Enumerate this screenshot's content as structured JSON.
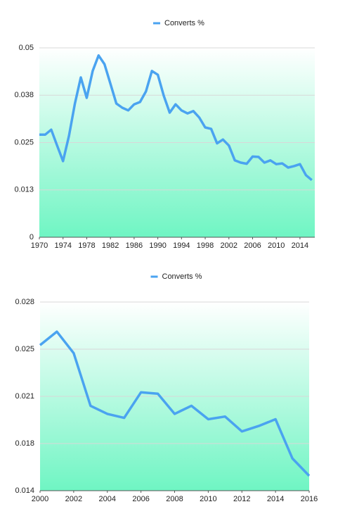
{
  "chart_data": [
    {
      "type": "line",
      "x": [
        1970,
        1971,
        1972,
        1973,
        1974,
        1975,
        1976,
        1977,
        1978,
        1979,
        1980,
        1981,
        1982,
        1983,
        1984,
        1985,
        1986,
        1987,
        1988,
        1989,
        1990,
        1991,
        1992,
        1993,
        1994,
        1995,
        1996,
        1997,
        1998,
        1999,
        2000,
        2001,
        2002,
        2003,
        2004,
        2005,
        2006,
        2007,
        2008,
        2009,
        2010,
        2011,
        2012,
        2013,
        2014,
        2015,
        2016
      ],
      "series": [
        {
          "name": "Converts %",
          "color": "#4aa3f0",
          "values": [
            0.0271,
            0.0271,
            0.0284,
            0.0242,
            0.0201,
            0.0268,
            0.0353,
            0.0422,
            0.0368,
            0.0439,
            0.048,
            0.0457,
            0.0405,
            0.0353,
            0.0342,
            0.0335,
            0.0351,
            0.0357,
            0.0385,
            0.0439,
            0.0429,
            0.0374,
            0.0329,
            0.0351,
            0.0335,
            0.0327,
            0.0333,
            0.0316,
            0.029,
            0.0286,
            0.0248,
            0.0258,
            0.0242,
            0.0203,
            0.0197,
            0.0194,
            0.0213,
            0.0212,
            0.0197,
            0.0203,
            0.0193,
            0.0195,
            0.0184,
            0.0188,
            0.0193,
            0.0164,
            0.0151
          ]
        }
      ],
      "xlim": [
        1970,
        2016.5
      ],
      "xticks": [
        1970,
        1974,
        1978,
        1982,
        1986,
        1990,
        1994,
        1998,
        2002,
        2006,
        2010,
        2014
      ],
      "ylim": [
        0,
        0.05
      ],
      "yticks": [
        0,
        {
          "value": 0.0125,
          "label": "0.013"
        },
        {
          "value": 0.025,
          "label": "0.025"
        },
        {
          "value": 0.0375,
          "label": "0.038"
        },
        0.05
      ],
      "grid": true,
      "legend": "top"
    },
    {
      "type": "line",
      "x": [
        2000,
        2001,
        2002,
        2003,
        2004,
        2005,
        2006,
        2007,
        2008,
        2009,
        2010,
        2011,
        2012,
        2013,
        2014,
        2015,
        2016
      ],
      "series": [
        {
          "name": "Converts %",
          "color": "#4aa3f0",
          "values": [
            0.0248,
            0.0258,
            0.0242,
            0.0203,
            0.0197,
            0.0194,
            0.0213,
            0.0212,
            0.0197,
            0.0203,
            0.0193,
            0.0195,
            0.0184,
            0.0188,
            0.0193,
            0.0164,
            0.0151
          ]
        }
      ],
      "xlim": [
        2000,
        2016
      ],
      "xticks": [
        2000,
        2002,
        2004,
        2006,
        2008,
        2010,
        2012,
        2014,
        2016
      ],
      "ylim": [
        0.014,
        0.028
      ],
      "yticks": [
        0.014,
        {
          "value": 0.0175,
          "label": "0.018"
        },
        0.021,
        {
          "value": 0.0245,
          "label": "0.025"
        },
        0.028
      ],
      "grid": true,
      "legend": "top"
    }
  ]
}
